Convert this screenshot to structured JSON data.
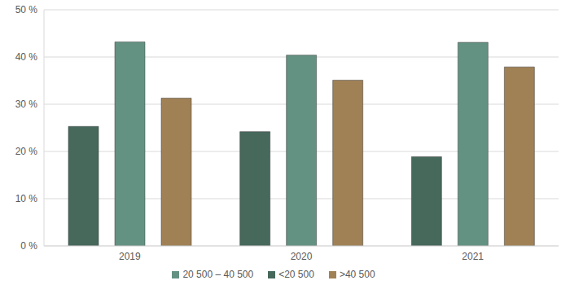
{
  "chart_data": {
    "type": "bar",
    "categories": [
      "2019",
      "2020",
      "2021"
    ],
    "series": [
      {
        "name": "<20 500",
        "color": "#46695c",
        "values": [
          25.3,
          24.2,
          18.9
        ]
      },
      {
        "name": "20 500 – 40 500",
        "color": "#639282",
        "values": [
          43.2,
          40.4,
          43.1
        ]
      },
      {
        "name": ">40 500",
        "color": "#a08155",
        "values": [
          31.3,
          35.1,
          37.9
        ]
      }
    ],
    "ylim": [
      0,
      50
    ],
    "yticks": [
      {
        "value": 0,
        "label": "0 %"
      },
      {
        "value": 10,
        "label": "10 %"
      },
      {
        "value": 20,
        "label": "20 %"
      },
      {
        "value": 30,
        "label": "30 %"
      },
      {
        "value": 40,
        "label": "40 %"
      },
      {
        "value": 50,
        "label": "50 %"
      }
    ],
    "grid": true,
    "legend": "bottom"
  }
}
